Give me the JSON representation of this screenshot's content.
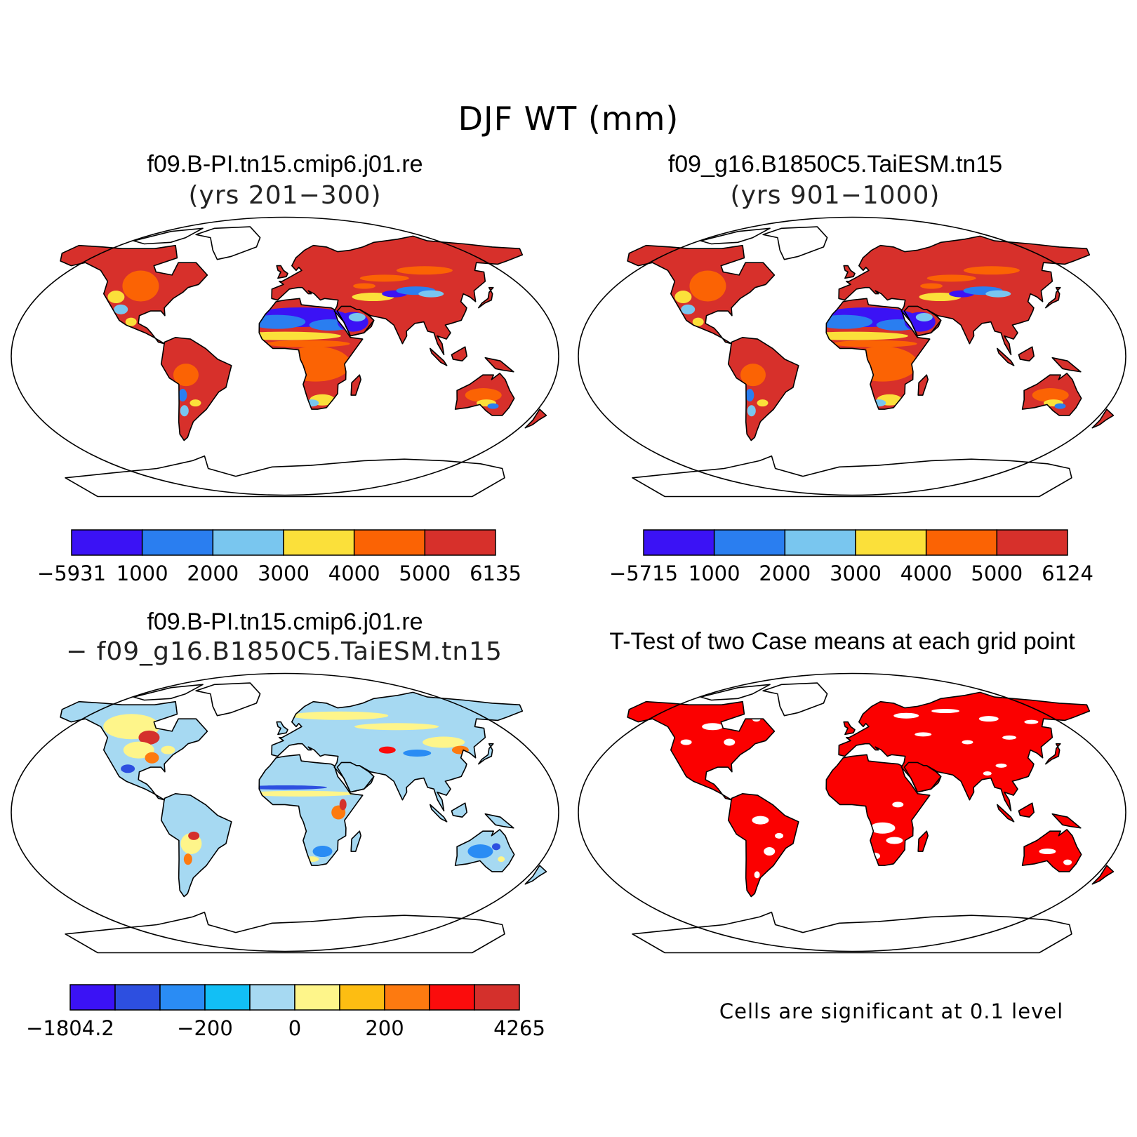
{
  "figure": {
    "title": "DJF WT (mm)",
    "panels": [
      {
        "id": "case1",
        "title": "f09.B-PI.tn15.cmip6.j01.re",
        "subtitle": "(yrs 201−300)"
      },
      {
        "id": "case2",
        "title": "f09_g16.B1850C5.TaiESM.tn15",
        "subtitle": "(yrs 901−1000)"
      },
      {
        "id": "diff",
        "title": "f09.B-PI.tn15.cmip6.j01.re",
        "subtitle": "− f09_g16.B1850C5.TaiESM.tn15"
      },
      {
        "id": "ttest",
        "title": "T-Test of two Case means at each grid point",
        "subtitle": ""
      }
    ],
    "ttest_note": "Cells are significant at 0.1 level"
  },
  "colorbars": {
    "case1": {
      "colors": [
        "#3b12f5",
        "#2a7ef0",
        "#79c6ef",
        "#fbe03a",
        "#fb6304",
        "#d7302b"
      ],
      "labels": [
        "−5931",
        "1000",
        "2000",
        "3000",
        "4000",
        "5000",
        "6135"
      ]
    },
    "case2": {
      "colors": [
        "#3b12f5",
        "#2a7ef0",
        "#79c6ef",
        "#fbe03a",
        "#fb6304",
        "#d7302b"
      ],
      "labels": [
        "−5715",
        "1000",
        "2000",
        "3000",
        "4000",
        "5000",
        "6124"
      ]
    },
    "diff": {
      "colors": [
        "#3b12f5",
        "#2d4fe0",
        "#2a8cf4",
        "#12bff5",
        "#a6d9f2",
        "#fef58a",
        "#fdbd12",
        "#fd7a10",
        "#fb0c0c",
        "#d4302c"
      ],
      "labels": [
        "−1804.2",
        "",
        "",
        "−200",
        "",
        "0",
        "",
        "200",
        "",
        "",
        "4265"
      ]
    }
  },
  "map_colors": {
    "ocean": "#ffffff",
    "outline": "#000000",
    "significant": "#fb0000"
  }
}
